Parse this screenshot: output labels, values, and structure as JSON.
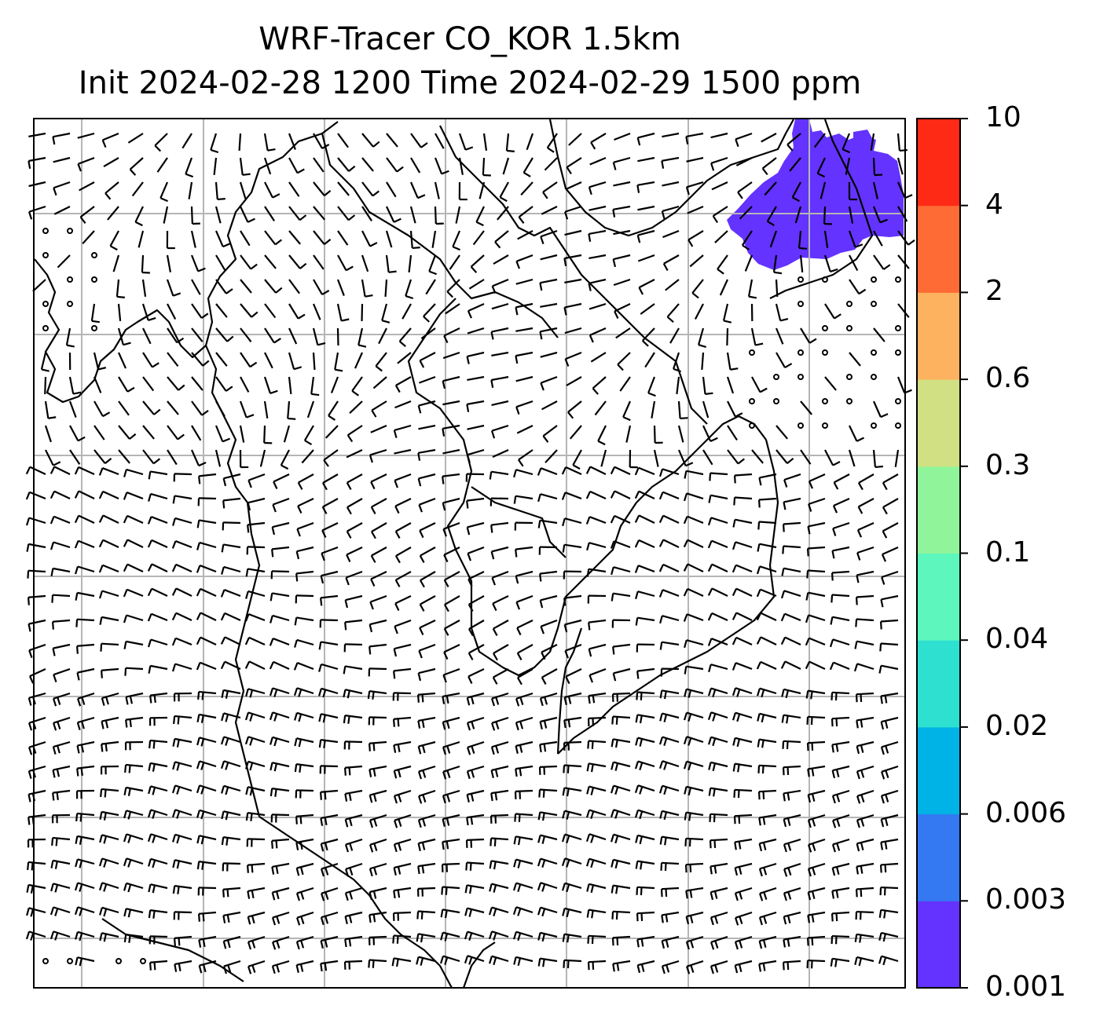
{
  "title": {
    "line1": "WRF-Tracer CO_KOR 1.5km",
    "line2": "Init 2024-02-28 1200 Time 2024-02-29 1500 ppm"
  },
  "colorbar": {
    "ticks": [
      "0.001",
      "0.003",
      "0.006",
      "0.02",
      "0.04",
      "0.1",
      "0.3",
      "0.6",
      "2",
      "4",
      "10"
    ],
    "colors": [
      "#6433ff",
      "#3478f2",
      "#00b3e6",
      "#2ee0d0",
      "#5df7be",
      "#90f59a",
      "#d1e083",
      "#fdb25f",
      "#ff6b35",
      "#ff2a16"
    ]
  },
  "map": {
    "background": "#ffffff",
    "grid_color": "#b5b5b5",
    "plume_color": "#6433ff",
    "wind_barb_color": "#000000",
    "coastline_color": "#000000"
  }
}
